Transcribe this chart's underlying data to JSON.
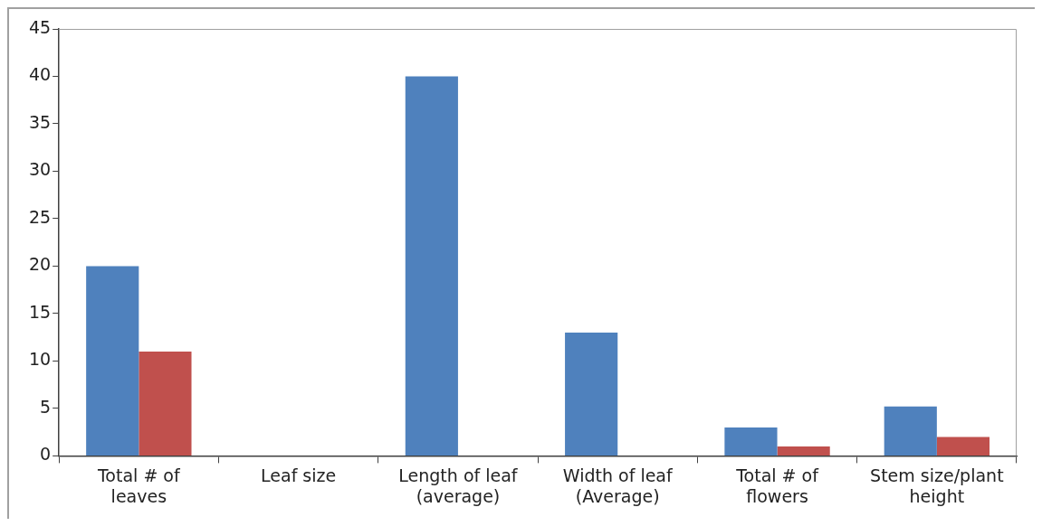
{
  "chart_data": {
    "type": "bar",
    "categories": [
      "Total # of\nleaves",
      "Leaf size",
      "Length of leaf\n(average)",
      "Width of leaf\n(Average)",
      "Total # of\nflowers",
      "Stem size/plant\nheight"
    ],
    "series": [
      {
        "color": "#4f81bd",
        "values": [
          20,
          null,
          40,
          13,
          3,
          5.2
        ]
      },
      {
        "color": "#c0504d",
        "values": [
          11,
          null,
          null,
          null,
          1,
          2
        ]
      }
    ],
    "ylim": [
      0,
      45
    ],
    "yticks": [
      0,
      5,
      10,
      15,
      20,
      25,
      30,
      35,
      40,
      45
    ],
    "grid": false,
    "legend": false
  }
}
